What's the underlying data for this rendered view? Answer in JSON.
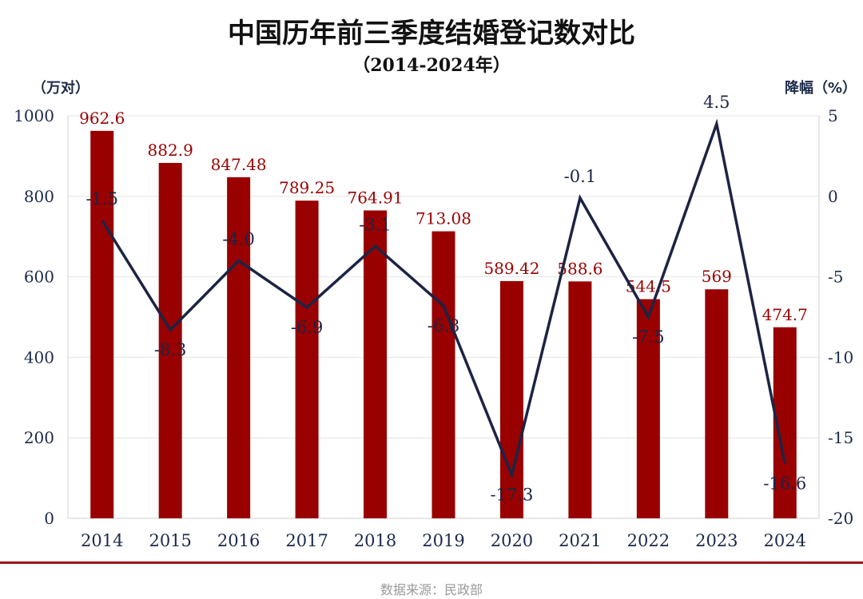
{
  "chart_data": {
    "type": "bar+line",
    "title": "中国历年前三季度结婚登记数对比",
    "subtitle": "（2014-2024年）",
    "ylabel_left": "（万对）",
    "ylabel_right": "降幅（%）",
    "categories": [
      "2014",
      "2015",
      "2016",
      "2017",
      "2018",
      "2019",
      "2020",
      "2021",
      "2022",
      "2023",
      "2024"
    ],
    "bar_series": {
      "values": [
        962.6,
        882.9,
        847.48,
        789.25,
        764.91,
        713.08,
        589.42,
        588.6,
        544.5,
        569,
        474.7
      ],
      "labels": [
        "962.6",
        "882.9",
        "847.48",
        "789.25",
        "764.91",
        "713.08",
        "589.42",
        "588.6",
        "544.5",
        "569",
        "474.7"
      ],
      "color": "#990000"
    },
    "line_series": {
      "values": [
        -1.5,
        -8.3,
        -4.0,
        -6.9,
        -3.1,
        -6.8,
        -17.3,
        -0.1,
        -7.5,
        4.5,
        -16.6
      ],
      "labels": [
        "-1.5",
        "-8.3",
        "-4.0",
        "-6.9",
        "-3.1",
        "-6.8",
        "-17.3",
        "-0.1",
        "-7.5",
        "4.5",
        "-16.6"
      ],
      "color": "#1c2444"
    },
    "ylim_left": [
      0,
      1000
    ],
    "yticks_left": [
      "0",
      "200",
      "400",
      "600",
      "800",
      "1000"
    ],
    "ylim_right": [
      -20,
      5
    ],
    "yticks_right": [
      "-20",
      "-15",
      "-10",
      "-5",
      "0",
      "5"
    ],
    "grid": true,
    "source": "数据来源：民政部"
  }
}
